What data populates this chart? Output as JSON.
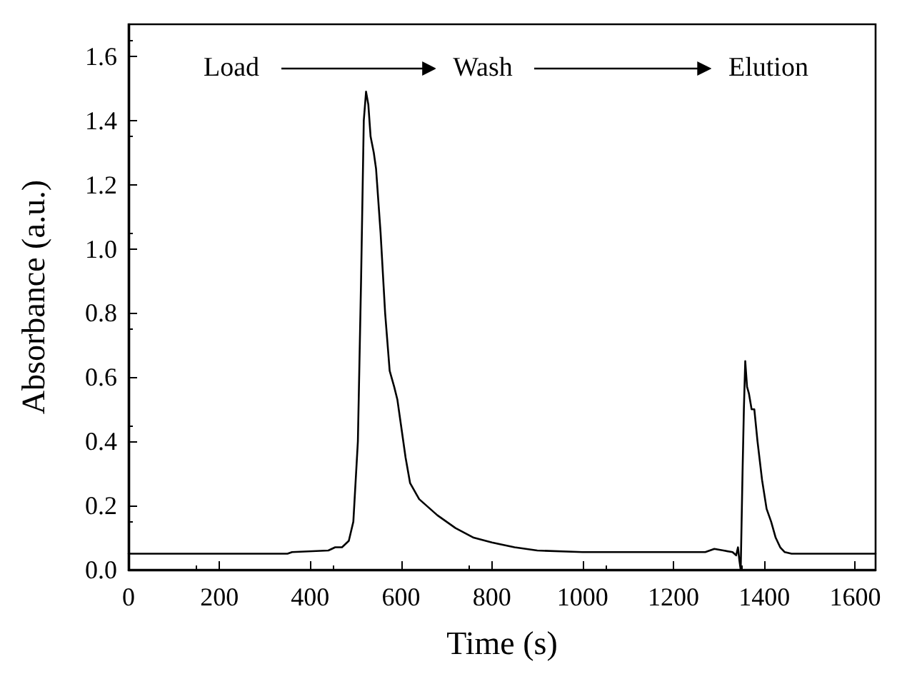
{
  "chart_data": {
    "type": "line",
    "xlabel": "Time (s)",
    "ylabel": "Absorbance (a.u.)",
    "annotations": [
      "Load",
      "Wash",
      "Elution"
    ],
    "xlim": [
      0,
      1645
    ],
    "xticks": [
      0,
      200,
      400,
      600,
      800,
      1000,
      1200,
      1400,
      1600
    ],
    "ylim": [
      0,
      1.7
    ],
    "yticks": [
      {
        "value": 0,
        "label": "0.0"
      },
      0.2,
      0.4,
      0.6,
      0.8,
      {
        "value": 1,
        "label": "1.0"
      },
      1.2,
      1.4,
      1.6
    ],
    "grid": false,
    "marker": "none",
    "line_style": "solid",
    "series": [
      {
        "color": "#000000",
        "x": [
          0,
          350,
          360,
          440,
          455,
          470,
          485,
          495,
          505,
          512,
          518,
          523,
          528,
          533,
          540,
          545,
          555,
          565,
          575,
          585,
          592,
          600,
          610,
          620,
          640,
          680,
          720,
          760,
          800,
          850,
          900,
          1000,
          1200,
          1270,
          1290,
          1310,
          1330,
          1338,
          1342,
          1345,
          1348,
          1352,
          1355,
          1358,
          1362,
          1366,
          1372,
          1378,
          1385,
          1395,
          1405,
          1415,
          1425,
          1435,
          1445,
          1460,
          1645
        ],
        "values": [
          0.05,
          0.05,
          0.055,
          0.06,
          0.07,
          0.07,
          0.09,
          0.15,
          0.4,
          0.9,
          1.4,
          1.49,
          1.45,
          1.35,
          1.3,
          1.25,
          1.05,
          0.8,
          0.62,
          0.57,
          0.53,
          0.45,
          0.35,
          0.27,
          0.22,
          0.17,
          0.13,
          0.1,
          0.085,
          0.07,
          0.06,
          0.055,
          0.055,
          0.055,
          0.065,
          0.06,
          0.055,
          0.045,
          0.07,
          0.03,
          0.0,
          0.3,
          0.5,
          0.65,
          0.57,
          0.55,
          0.5,
          0.5,
          0.4,
          0.28,
          0.19,
          0.15,
          0.1,
          0.07,
          0.055,
          0.05,
          0.05
        ]
      }
    ]
  }
}
